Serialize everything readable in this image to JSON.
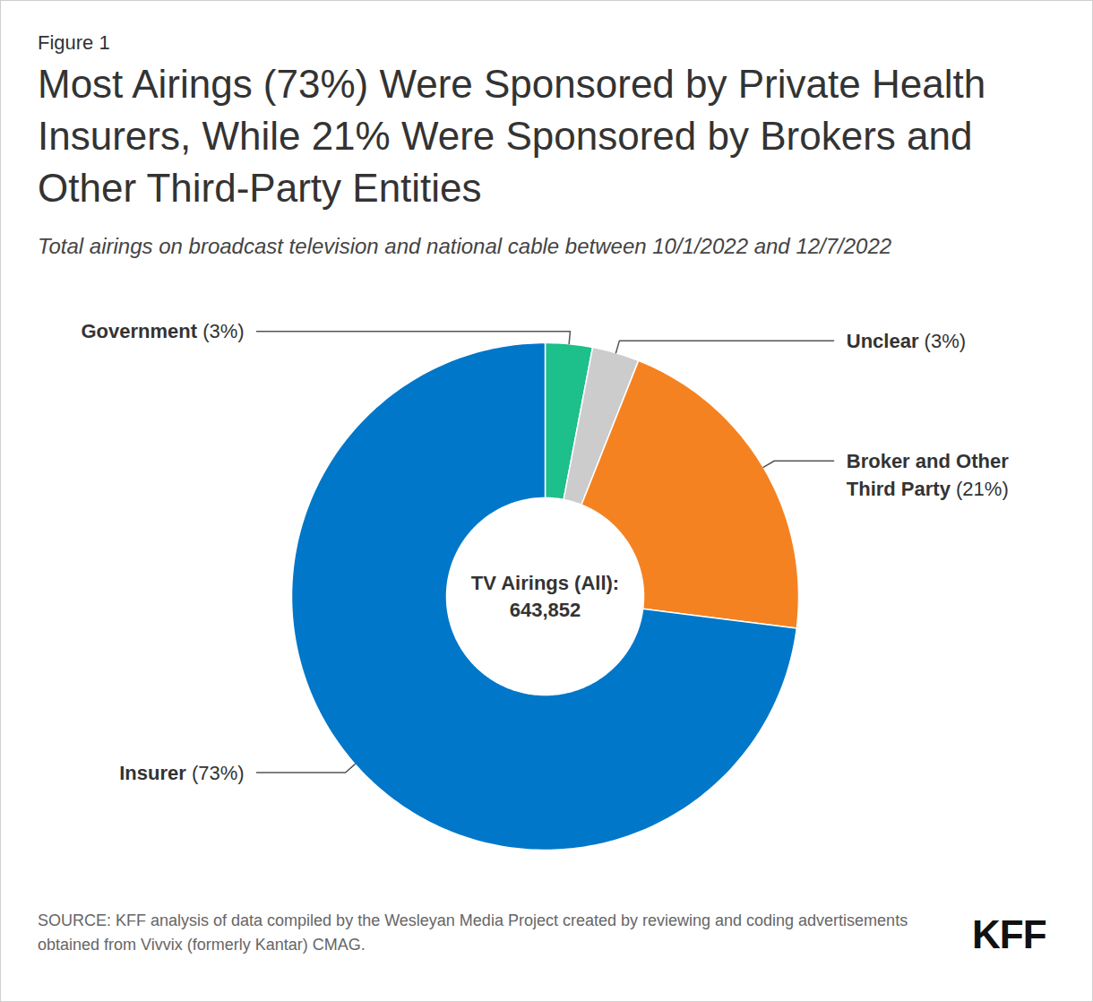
{
  "chart_data": {
    "type": "donut",
    "figure_label": "Figure 1",
    "title": "Most Airings (73%) Were Sponsored by Private Health Insurers, While 21% Were Sponsored by Brokers and Other Third-Party Entities",
    "subtitle": "Total airings on broadcast television and national cable between 10/1/2022 and 12/7/2022",
    "categories": [
      "Government",
      "Unclear",
      "Broker and Other Third Party",
      "Insurer"
    ],
    "values": [
      3,
      3,
      21,
      73
    ],
    "value_labels": [
      "(3%)",
      "(3%)",
      "(21%)",
      "(73%)"
    ],
    "colors": [
      "#1dbf8a",
      "#cccccc",
      "#f58220",
      "#0077c8"
    ],
    "data_labels": true,
    "center_text": [
      "TV Airings (All):",
      "643,852"
    ],
    "source": "SOURCE: KFF analysis of data compiled by the Wesleyan Media Project created by reviewing and coding advertisements obtained from Vivvix (formerly Kantar) CMAG.",
    "logo": "KFF"
  }
}
